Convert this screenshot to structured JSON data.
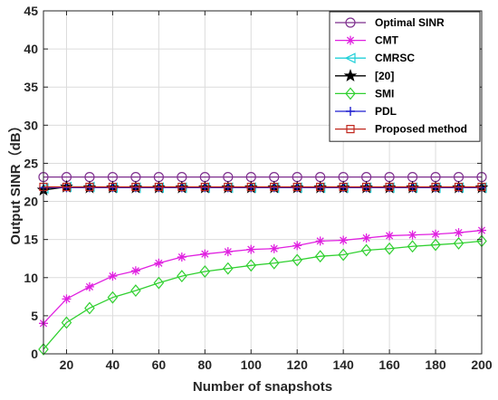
{
  "chart_data": {
    "type": "line",
    "xlabel": "Number of snapshots",
    "ylabel": "Output SINR（dB）",
    "xlim": [
      10,
      200
    ],
    "ylim": [
      0,
      45
    ],
    "xticks": [
      "20",
      "40",
      "60",
      "80",
      "100",
      "120",
      "140",
      "160",
      "180",
      "200"
    ],
    "yticks": [
      "0",
      "5",
      "10",
      "15",
      "20",
      "25",
      "30",
      "35",
      "40",
      "45"
    ],
    "grid": true,
    "legend_position": "top-right",
    "x": [
      10,
      20,
      30,
      40,
      50,
      60,
      70,
      80,
      90,
      100,
      110,
      120,
      130,
      140,
      150,
      160,
      170,
      180,
      190,
      200
    ],
    "series": [
      {
        "name": "Optimal SINR",
        "color": "#7e2f8e",
        "marker": "circle",
        "values": [
          23.2,
          23.2,
          23.2,
          23.2,
          23.2,
          23.2,
          23.2,
          23.2,
          23.2,
          23.2,
          23.2,
          23.2,
          23.2,
          23.2,
          23.2,
          23.2,
          23.2,
          23.2,
          23.2,
          23.2
        ]
      },
      {
        "name": "CMT",
        "color": "#e020e0",
        "marker": "asterisk",
        "values": [
          4.0,
          7.2,
          8.8,
          10.2,
          10.9,
          11.9,
          12.7,
          13.1,
          13.4,
          13.7,
          13.8,
          14.2,
          14.8,
          14.9,
          15.2,
          15.5,
          15.6,
          15.7,
          15.9,
          16.2
        ]
      },
      {
        "name": "CMRSC",
        "color": "#20d0d8",
        "marker": "triangle-left",
        "values": [
          21.7,
          21.9,
          21.9,
          21.8,
          21.8,
          21.8,
          21.8,
          21.8,
          21.8,
          21.8,
          21.8,
          21.8,
          21.8,
          21.8,
          21.8,
          21.8,
          21.8,
          21.8,
          21.8,
          21.8
        ]
      },
      {
        "name": "[20]",
        "color": "#000000",
        "marker": "star",
        "values": [
          21.5,
          21.9,
          21.8,
          21.8,
          21.8,
          21.8,
          21.8,
          21.8,
          21.8,
          21.8,
          21.8,
          21.8,
          21.8,
          21.8,
          21.8,
          21.8,
          21.8,
          21.8,
          21.8,
          21.8
        ]
      },
      {
        "name": "SMI",
        "color": "#30d030",
        "marker": "diamond",
        "values": [
          0.6,
          4.1,
          6.0,
          7.4,
          8.3,
          9.3,
          10.2,
          10.8,
          11.2,
          11.6,
          11.9,
          12.3,
          12.8,
          13.0,
          13.6,
          13.8,
          14.1,
          14.3,
          14.5,
          14.8
        ]
      },
      {
        "name": "PDL",
        "color": "#1f1fd0",
        "marker": "plus",
        "values": [
          21.8,
          21.8,
          21.8,
          21.8,
          21.8,
          21.8,
          21.8,
          21.8,
          21.8,
          21.8,
          21.8,
          21.8,
          21.8,
          21.8,
          21.8,
          21.8,
          21.8,
          21.8,
          21.8,
          21.8
        ]
      },
      {
        "name": "Proposed method",
        "color": "#c0261c",
        "marker": "square",
        "values": [
          21.9,
          21.9,
          21.9,
          21.9,
          21.9,
          21.9,
          21.9,
          21.9,
          21.9,
          21.9,
          21.9,
          21.9,
          21.9,
          21.9,
          21.9,
          21.9,
          21.9,
          21.9,
          21.9,
          21.9
        ]
      }
    ]
  }
}
